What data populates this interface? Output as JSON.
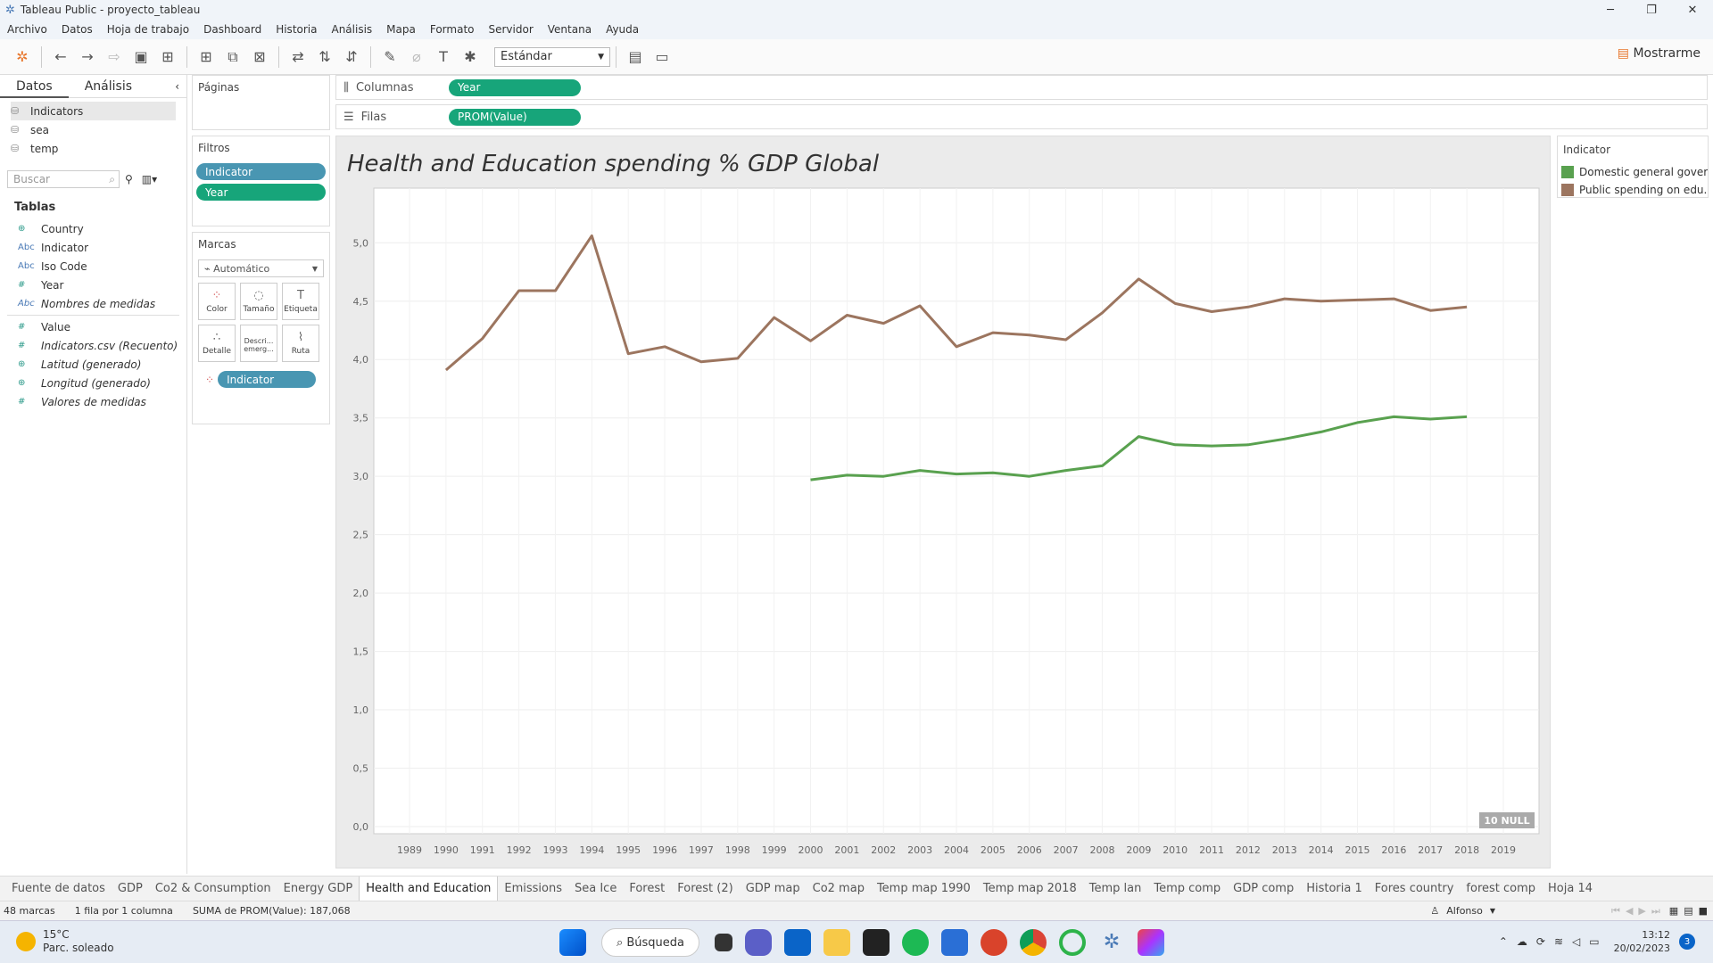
{
  "window": {
    "title": "Tableau Public - proyecto_tableau",
    "controls": [
      "─",
      "❐",
      "✕"
    ]
  },
  "menu": [
    "Archivo",
    "Datos",
    "Hoja de trabajo",
    "Dashboard",
    "Historia",
    "Análisis",
    "Mapa",
    "Formato",
    "Servidor",
    "Ventana",
    "Ayuda"
  ],
  "toolbar": {
    "fit_select": "Estándar",
    "show_me": "Mostrarme"
  },
  "left_panel": {
    "tab_data": "Datos",
    "tab_analysis": "Análisis",
    "datasources": [
      "Indicators",
      "sea",
      "temp"
    ],
    "search_placeholder": "Buscar",
    "tables_heading": "Tablas",
    "fields": [
      {
        "icon": "⊕",
        "name": "Country"
      },
      {
        "icon": "Abc",
        "name": "Indicator"
      },
      {
        "icon": "Abc",
        "name": "Iso Code"
      },
      {
        "icon": "#",
        "name": "Year"
      },
      {
        "icon": "Abc",
        "name": "Nombres de medidas"
      },
      {
        "icon": "#",
        "name": "Value"
      },
      {
        "icon": "#",
        "name": "Indicators.csv (Recuento)"
      },
      {
        "icon": "⊕",
        "name": "Latitud (generado)"
      },
      {
        "icon": "⊕",
        "name": "Longitud (generado)"
      },
      {
        "icon": "#",
        "name": "Valores de medidas"
      }
    ]
  },
  "cards": {
    "pages": "Páginas",
    "filters": "Filtros",
    "filter_pills": [
      "Indicator",
      "Year"
    ],
    "marks": "Marcas",
    "mark_type": "Automático",
    "mark_buttons": [
      "Color",
      "Tamaño",
      "Etiqueta",
      "Detalle",
      "Descri... emerg...",
      "Ruta"
    ],
    "mark_pill": "Indicator"
  },
  "shelves": {
    "columns_label": "Columnas",
    "columns_pill": "Year",
    "rows_label": "Filas",
    "rows_pill": "PROM(Value)"
  },
  "legend": {
    "title": "Indicator",
    "items": [
      {
        "label": "Domestic general gover..",
        "color": "#59a14f"
      },
      {
        "label": "Public spending on edu..",
        "color": "#9c755f"
      }
    ]
  },
  "chart_data": {
    "type": "line",
    "title": "Health and Education spending % GDP Global",
    "x": [
      1989,
      1990,
      1991,
      1992,
      1993,
      1994,
      1995,
      1996,
      1997,
      1998,
      1999,
      2000,
      2001,
      2002,
      2003,
      2004,
      2005,
      2006,
      2007,
      2008,
      2009,
      2010,
      2011,
      2012,
      2013,
      2014,
      2015,
      2016,
      2017,
      2018,
      2019
    ],
    "xlim": [
      1989,
      2019
    ],
    "ylim": [
      0,
      5.3
    ],
    "yticks": [
      "0,0",
      "0,5",
      "1,0",
      "1,5",
      "2,0",
      "2,5",
      "3,0",
      "3,5",
      "4,0",
      "4,5",
      "5,0"
    ],
    "series": [
      {
        "name": "Public spending on edu..",
        "color": "#9c755f",
        "x": [
          1990,
          1991,
          1992,
          1993,
          1994,
          1995,
          1996,
          1997,
          1998,
          1999,
          2000,
          2001,
          2002,
          2003,
          2004,
          2005,
          2006,
          2007,
          2008,
          2009,
          2010,
          2011,
          2012,
          2013,
          2014,
          2015,
          2016,
          2017,
          2018
        ],
        "values": [
          3.91,
          4.18,
          4.59,
          4.59,
          5.06,
          4.05,
          4.11,
          3.98,
          4.01,
          4.36,
          4.16,
          4.38,
          4.31,
          4.46,
          4.11,
          4.23,
          4.21,
          4.17,
          4.4,
          4.69,
          4.48,
          4.41,
          4.45,
          4.52,
          4.5,
          4.51,
          4.52,
          4.42,
          4.45
        ]
      },
      {
        "name": "Domestic general gover..",
        "color": "#59a14f",
        "x": [
          2000,
          2001,
          2002,
          2003,
          2004,
          2005,
          2006,
          2007,
          2008,
          2009,
          2010,
          2011,
          2012,
          2013,
          2014,
          2015,
          2016,
          2017,
          2018
        ],
        "values": [
          2.97,
          3.01,
          3.0,
          3.05,
          3.02,
          3.03,
          3.0,
          3.05,
          3.09,
          3.34,
          3.27,
          3.26,
          3.27,
          3.32,
          3.38,
          3.46,
          3.51,
          3.49,
          3.51
        ]
      }
    ],
    "null_badge": "10 NULL",
    "grid": true
  },
  "sheet_tabs": [
    "Fuente de datos",
    "GDP",
    "Co2 & Consumption",
    "Energy GDP",
    "Health and Education",
    "Emissions",
    "Sea Ice",
    "Forest",
    "Forest (2)",
    "GDP map",
    "Co2 map",
    "Temp map 1990",
    "Temp map 2018",
    "Temp lan",
    "Temp comp",
    "GDP comp",
    "Historia 1",
    "Fores country",
    "forest comp",
    "Hoja 14"
  ],
  "active_tab": "Health and Education",
  "status": {
    "marks": "48 marcas",
    "rows": "1 fila por 1 columna",
    "sum": "SUMA de PROM(Value): 187,068",
    "user": "Alfonso"
  },
  "taskbar": {
    "temp": "15°C",
    "weather": "Parc. soleado",
    "search": "Búsqueda",
    "time": "13:12",
    "date": "20/02/2023",
    "badge": "3"
  }
}
